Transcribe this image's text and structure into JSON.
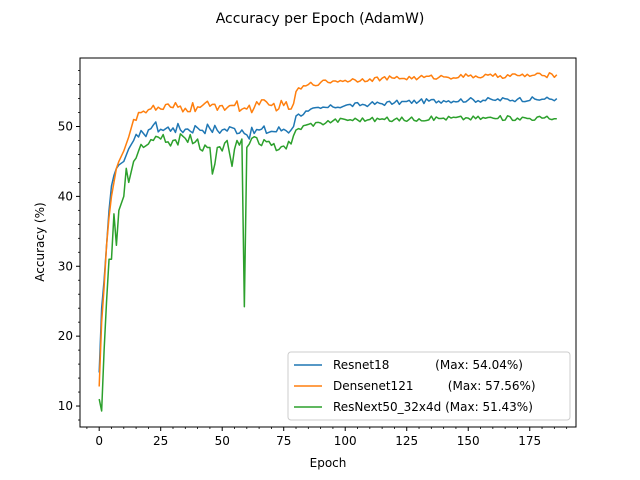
{
  "chart_data": {
    "type": "line",
    "title": "Accuracy per Epoch (AdamW)",
    "xlabel": "Epoch",
    "ylabel": "Accuracy (%)",
    "xlim": [
      -7.8,
      193.8
    ],
    "ylim": [
      7.0,
      59.8
    ],
    "xticks": [
      0,
      25,
      50,
      75,
      100,
      125,
      150,
      175
    ],
    "yticks": [
      10,
      20,
      30,
      40,
      50
    ],
    "legend_position": "lower-right",
    "grid": false,
    "series": [
      {
        "name": "Resnet18",
        "legend_label": "Resnet18            (Max: 54.04%)",
        "color": "#1f77b4",
        "keypoints": [
          [
            0,
            14.8
          ],
          [
            1,
            24
          ],
          [
            2,
            28
          ],
          [
            3,
            33
          ],
          [
            4,
            38
          ],
          [
            5,
            41.5
          ],
          [
            6,
            43
          ],
          [
            7,
            44
          ],
          [
            8,
            44.5
          ],
          [
            10,
            45
          ],
          [
            12,
            46.8
          ],
          [
            14,
            48
          ],
          [
            16,
            48.5
          ],
          [
            18,
            49
          ],
          [
            20,
            49.5
          ],
          [
            22,
            50.2
          ],
          [
            25,
            49.6
          ],
          [
            30,
            49.8
          ],
          [
            35,
            49.6
          ],
          [
            40,
            49.8
          ],
          [
            45,
            49.7
          ],
          [
            50,
            49.5
          ],
          [
            55,
            49.7
          ],
          [
            58,
            49.5
          ],
          [
            60,
            48.8
          ],
          [
            65,
            49.5
          ],
          [
            70,
            49.3
          ],
          [
            75,
            49.6
          ],
          [
            78,
            49.5
          ],
          [
            80,
            51.5
          ],
          [
            85,
            52.2
          ],
          [
            90,
            52.6
          ],
          [
            95,
            52.8
          ],
          [
            100,
            53
          ],
          [
            110,
            53.2
          ],
          [
            120,
            53.4
          ],
          [
            130,
            53.6
          ],
          [
            140,
            53.7
          ],
          [
            150,
            53.8
          ],
          [
            160,
            53.8
          ],
          [
            170,
            53.9
          ],
          [
            180,
            53.9
          ],
          [
            186,
            54
          ]
        ]
      },
      {
        "name": "Densenet121",
        "legend_label": "Densenet121         (Max: 57.56%)",
        "color": "#ff7f0e",
        "keypoints": [
          [
            0,
            12.8
          ],
          [
            1,
            22
          ],
          [
            2,
            27
          ],
          [
            3,
            33
          ],
          [
            4,
            37
          ],
          [
            5,
            40
          ],
          [
            6,
            42
          ],
          [
            7,
            44
          ],
          [
            8,
            45
          ],
          [
            10,
            46.5
          ],
          [
            12,
            48.5
          ],
          [
            14,
            51
          ],
          [
            16,
            52
          ],
          [
            18,
            52.2
          ],
          [
            20,
            52.4
          ],
          [
            25,
            52.5
          ],
          [
            30,
            52.7
          ],
          [
            35,
            52.6
          ],
          [
            40,
            52.8
          ],
          [
            45,
            52.9
          ],
          [
            50,
            53
          ],
          [
            55,
            53
          ],
          [
            60,
            52.5
          ],
          [
            65,
            53.1
          ],
          [
            70,
            53
          ],
          [
            75,
            53
          ],
          [
            78,
            52.5
          ],
          [
            80,
            55
          ],
          [
            85,
            56
          ],
          [
            90,
            56.3
          ],
          [
            95,
            56.5
          ],
          [
            100,
            56.6
          ],
          [
            110,
            56.8
          ],
          [
            120,
            56.9
          ],
          [
            130,
            57
          ],
          [
            140,
            57.1
          ],
          [
            150,
            57.2
          ],
          [
            160,
            57.2
          ],
          [
            170,
            57.3
          ],
          [
            180,
            57.3
          ],
          [
            186,
            57.4
          ]
        ]
      },
      {
        "name": "ResNext50_32x4d",
        "legend_label": "ResNext50_32x4d (Max: 51.43%)",
        "color": "#2ca02c",
        "keypoints": [
          [
            0,
            11
          ],
          [
            1,
            9.3
          ],
          [
            2,
            18
          ],
          [
            3,
            25
          ],
          [
            4,
            31
          ],
          [
            5,
            31
          ],
          [
            6,
            37.5
          ],
          [
            7,
            33
          ],
          [
            8,
            38
          ],
          [
            10,
            40
          ],
          [
            11,
            44
          ],
          [
            12,
            42
          ],
          [
            14,
            45
          ],
          [
            16,
            46.5
          ],
          [
            18,
            47
          ],
          [
            20,
            47.5
          ],
          [
            22,
            48
          ],
          [
            25,
            48.2
          ],
          [
            28,
            47.8
          ],
          [
            30,
            48
          ],
          [
            35,
            48.3
          ],
          [
            40,
            48.2
          ],
          [
            42,
            46.5
          ],
          [
            45,
            47
          ],
          [
            46,
            43.2
          ],
          [
            48,
            47
          ],
          [
            50,
            46.5
          ],
          [
            52,
            48
          ],
          [
            54,
            44.3
          ],
          [
            56,
            48
          ],
          [
            58,
            48.2
          ],
          [
            59,
            24.2
          ],
          [
            60,
            47
          ],
          [
            62,
            48.3
          ],
          [
            65,
            47.5
          ],
          [
            70,
            47.3
          ],
          [
            75,
            47.2
          ],
          [
            78,
            47.5
          ],
          [
            80,
            49.5
          ],
          [
            85,
            50.3
          ],
          [
            90,
            50.5
          ],
          [
            95,
            50.8
          ],
          [
            100,
            51
          ],
          [
            110,
            51
          ],
          [
            120,
            51
          ],
          [
            130,
            51.1
          ],
          [
            140,
            51.2
          ],
          [
            150,
            51.2
          ],
          [
            160,
            51.2
          ],
          [
            170,
            51.2
          ],
          [
            180,
            51.2
          ],
          [
            186,
            51.1
          ]
        ]
      }
    ]
  }
}
